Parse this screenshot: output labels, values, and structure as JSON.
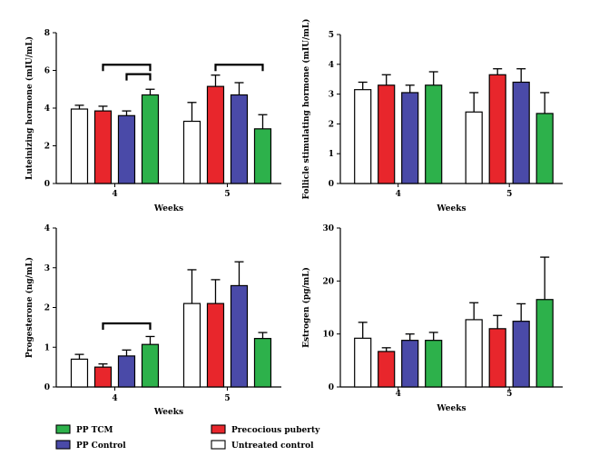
{
  "colors": {
    "untreated": "#ffffff",
    "precocious": "#e8262c",
    "pp_control": "#4a4aa8",
    "pp_tcm": "#2db14b",
    "stroke": "#000000"
  },
  "legend": [
    {
      "key": "pp_tcm",
      "label": "PP TCM"
    },
    {
      "key": "precocious",
      "label": "Precocious puberty"
    },
    {
      "key": "pp_control",
      "label": "PP Control"
    },
    {
      "key": "untreated",
      "label": "Untreated control"
    }
  ],
  "chart_data": [
    {
      "id": "lh",
      "type": "bar",
      "ylabel": "Luteinizing hormone (mIU/mL)",
      "xlabel": "Weeks",
      "categories": [
        "4",
        "5"
      ],
      "ylim": [
        0,
        8
      ],
      "yticks": [
        "0",
        "2",
        "4",
        "6",
        "8"
      ],
      "series": [
        {
          "key": "untreated",
          "values": [
            3.95,
            3.3
          ],
          "errors": [
            0.2,
            1.0
          ]
        },
        {
          "key": "precocious",
          "values": [
            3.85,
            5.15
          ],
          "errors": [
            0.25,
            0.6
          ]
        },
        {
          "key": "pp_control",
          "values": [
            3.6,
            4.7
          ],
          "errors": [
            0.25,
            0.65
          ]
        },
        {
          "key": "pp_tcm",
          "values": [
            4.7,
            2.9
          ],
          "errors": [
            0.3,
            0.75
          ]
        }
      ],
      "brackets": [
        {
          "category": 0,
          "from": 1,
          "to": 3,
          "level": 6.3
        },
        {
          "category": 0,
          "from": 2,
          "to": 3,
          "level": 5.8
        },
        {
          "category": 1,
          "from": 1,
          "to": 3,
          "level": 6.3
        }
      ]
    },
    {
      "id": "fsh",
      "type": "bar",
      "ylabel": "Follicle stimulating hormone (mIU/mL)",
      "xlabel": "Weeks",
      "categories": [
        "4",
        "5"
      ],
      "ylim": [
        0,
        5
      ],
      "yticks": [
        "0",
        "1",
        "2",
        "3",
        "4",
        "5"
      ],
      "series": [
        {
          "key": "untreated",
          "values": [
            3.15,
            2.4
          ],
          "errors": [
            0.25,
            0.65
          ]
        },
        {
          "key": "precocious",
          "values": [
            3.3,
            3.65
          ],
          "errors": [
            0.35,
            0.2
          ]
        },
        {
          "key": "pp_control",
          "values": [
            3.05,
            3.4
          ],
          "errors": [
            0.25,
            0.45
          ]
        },
        {
          "key": "pp_tcm",
          "values": [
            3.3,
            2.35
          ],
          "errors": [
            0.45,
            0.7
          ]
        }
      ],
      "brackets": []
    },
    {
      "id": "progesterone",
      "type": "bar",
      "ylabel": "Progesterone (ng/mL)",
      "xlabel": "Weeks",
      "categories": [
        "4",
        "5"
      ],
      "ylim": [
        0,
        4
      ],
      "yticks": [
        "0",
        "1",
        "2",
        "3",
        "4"
      ],
      "series": [
        {
          "key": "untreated",
          "values": [
            0.7,
            2.1
          ],
          "errors": [
            0.12,
            0.85
          ]
        },
        {
          "key": "precocious",
          "values": [
            0.5,
            2.1
          ],
          "errors": [
            0.08,
            0.6
          ]
        },
        {
          "key": "pp_control",
          "values": [
            0.78,
            2.55
          ],
          "errors": [
            0.15,
            0.6
          ]
        },
        {
          "key": "pp_tcm",
          "values": [
            1.07,
            1.22
          ],
          "errors": [
            0.2,
            0.15
          ]
        }
      ],
      "brackets": [
        {
          "category": 0,
          "from": 1,
          "to": 3,
          "level": 1.6
        }
      ]
    },
    {
      "id": "estrogen",
      "type": "bar",
      "ylabel": "Estrogen (pg/mL)",
      "xlabel": "Weeks",
      "categories": [
        "4",
        "5"
      ],
      "ylim": [
        0,
        30
      ],
      "yticks": [
        "0",
        "10",
        "20",
        "30"
      ],
      "series": [
        {
          "key": "untreated",
          "values": [
            9.2,
            12.7
          ],
          "errors": [
            3.0,
            3.2
          ]
        },
        {
          "key": "precocious",
          "values": [
            6.7,
            11.0
          ],
          "errors": [
            0.7,
            2.5
          ]
        },
        {
          "key": "pp_control",
          "values": [
            8.8,
            12.4
          ],
          "errors": [
            1.2,
            3.3
          ]
        },
        {
          "key": "pp_tcm",
          "values": [
            8.8,
            16.5
          ],
          "errors": [
            1.5,
            8.0
          ]
        }
      ],
      "brackets": []
    }
  ]
}
